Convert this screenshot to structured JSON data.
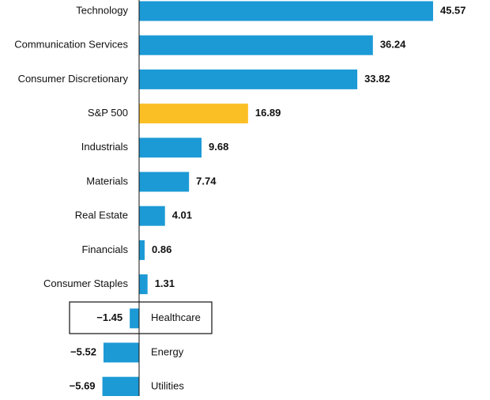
{
  "chart_data": {
    "type": "bar",
    "orientation": "horizontal",
    "categories": [
      "Technology",
      "Communication Services",
      "Consumer Discretionary",
      "S&P 500",
      "Industrials",
      "Materials",
      "Real Estate",
      "Financials",
      "Consumer Staples",
      "Healthcare",
      "Energy",
      "Utilities"
    ],
    "values": [
      45.57,
      36.24,
      33.82,
      16.89,
      9.68,
      7.74,
      4.01,
      0.86,
      1.31,
      -1.45,
      -5.52,
      -5.69
    ],
    "value_labels": [
      "45.57",
      "36.24",
      "33.82",
      "16.89",
      "9.68",
      "7.74",
      "4.01",
      "0.86",
      "1.31",
      "−1.45",
      "−5.52",
      "−5.69"
    ],
    "colors": [
      "#1c9ad6",
      "#1c9ad6",
      "#1c9ad6",
      "#fbbf26",
      "#1c9ad6",
      "#1c9ad6",
      "#1c9ad6",
      "#1c9ad6",
      "#1c9ad6",
      "#1c9ad6",
      "#1c9ad6",
      "#1c9ad6"
    ]
  }
}
